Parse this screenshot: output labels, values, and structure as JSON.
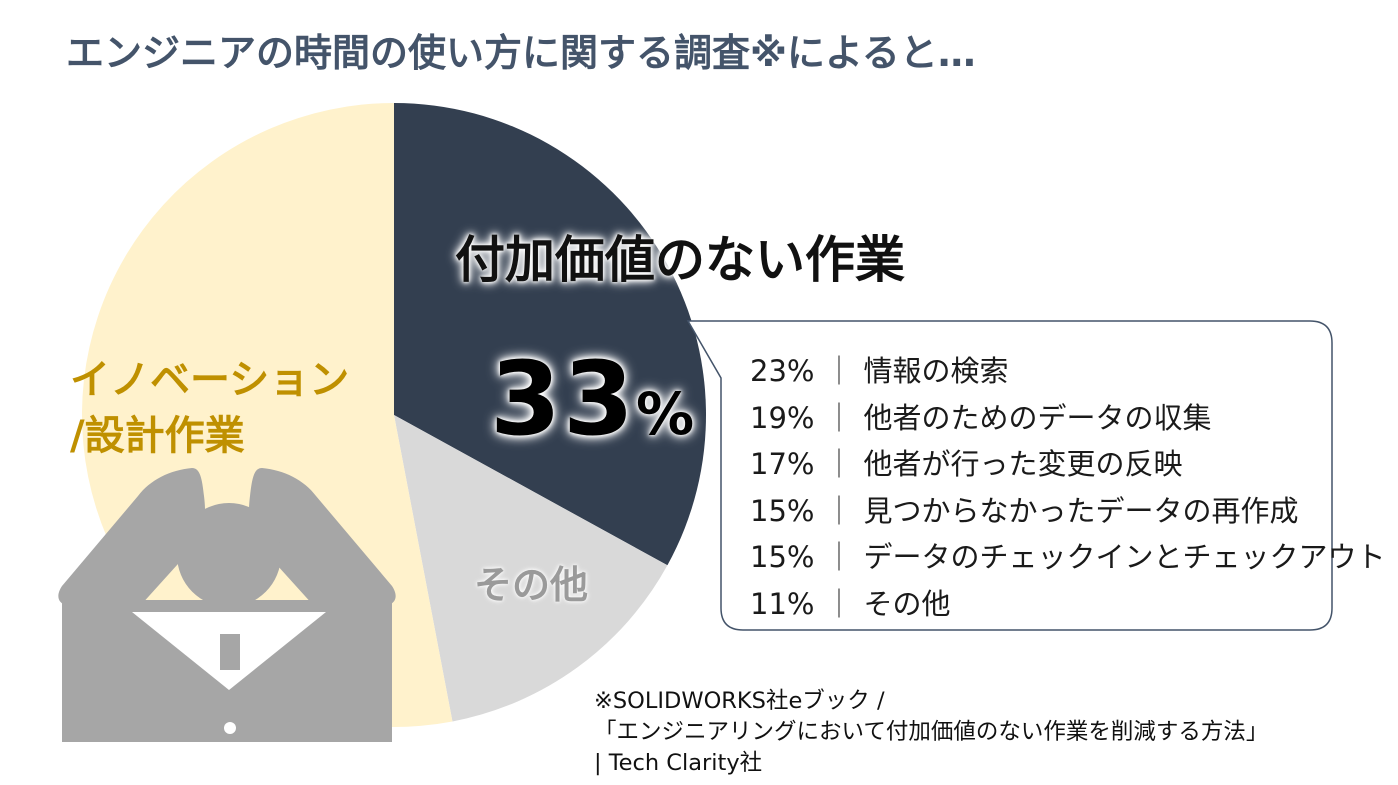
{
  "title": "エンジニアの時間の使い方に関する調査※によると…",
  "chart_data": {
    "type": "pie",
    "slices": [
      {
        "key": "non_value",
        "label": "付加価値のない作業",
        "value": 33,
        "color": "#333f50"
      },
      {
        "key": "other",
        "label": "その他",
        "value": 14,
        "color": "#d9d9d9"
      },
      {
        "key": "innovation",
        "label_lines": [
          "イノベーション",
          "/設計作業"
        ],
        "value": 53,
        "color": "#fff2cc"
      }
    ],
    "highlight": {
      "value": "33",
      "unit": "%"
    },
    "breakdown": [
      {
        "pct": "23%",
        "item": "情報の検索"
      },
      {
        "pct": "19%",
        "item": "他者のためのデータの収集"
      },
      {
        "pct": "17%",
        "item": "他者が行った変更の反映"
      },
      {
        "pct": "15%",
        "item": "見つからなかったデータの再作成"
      },
      {
        "pct": "15%",
        "item": "データのチェックインとチェックアウト"
      },
      {
        "pct": "11%",
        "item": "その他"
      }
    ],
    "breakdown_separator": "｜"
  },
  "source": {
    "line1": "※SOLIDWORKS社eブック /",
    "line2": "「エンジニアリングにおいて付加価値のない作業を削減する方法」",
    "line3": "| Tech Clarity社"
  },
  "illustration": {
    "icon": "frustrated-person-icon",
    "color": "#a6a6a6"
  }
}
